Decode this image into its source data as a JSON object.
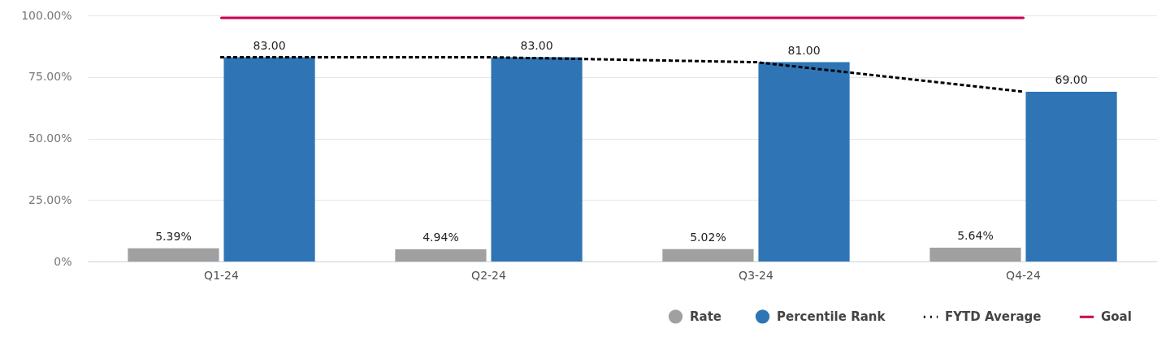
{
  "chart_data": {
    "type": "bar",
    "categories": [
      "Q1-24",
      "Q2-24",
      "Q3-24",
      "Q4-24"
    ],
    "series": [
      {
        "name": "Rate",
        "color": "#a0a0a0",
        "values": [
          5.39,
          4.94,
          5.02,
          5.64
        ],
        "value_labels": [
          "5.39%",
          "4.94%",
          "5.02%",
          "5.64%"
        ]
      },
      {
        "name": "Percentile Rank",
        "color": "#2f75b5",
        "values": [
          83,
          83,
          81,
          69
        ],
        "value_labels": [
          "83.00",
          "83.00",
          "81.00",
          "69.00"
        ]
      },
      {
        "name": "FYTD Average",
        "type": "line",
        "color": "#000000",
        "line_style": "dotted",
        "values": [
          83,
          83,
          81,
          69
        ]
      },
      {
        "name": "Goal",
        "type": "line",
        "color": "#c8004f",
        "line_style": "solid",
        "values": [
          99,
          99,
          99,
          99
        ]
      }
    ],
    "ylim": [
      0,
      100
    ],
    "yticks": [
      {
        "value": 0,
        "label": "0%"
      },
      {
        "value": 25,
        "label": "25.00%"
      },
      {
        "value": 50,
        "label": "50.00%"
      },
      {
        "value": 75,
        "label": "75.00%"
      },
      {
        "value": 100,
        "label": "100.00%"
      }
    ],
    "grid": "y",
    "legend": "bottom right",
    "marker": "none"
  }
}
